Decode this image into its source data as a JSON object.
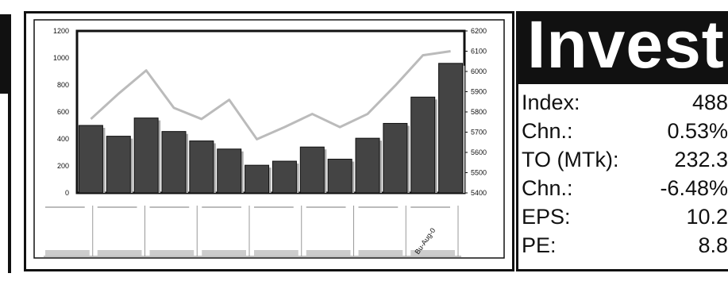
{
  "header": {
    "title": "Invest"
  },
  "stats": [
    {
      "label": "Index:",
      "value": "488"
    },
    {
      "label": "Chn.:",
      "value": "0.53%"
    },
    {
      "label": "TO (MTk):",
      "value": "232.3"
    },
    {
      "label": "Chn.:",
      "value": "-6.48%"
    },
    {
      "label": "EPS:",
      "value": "10.2"
    },
    {
      "label": "PE:",
      "value": "8.8"
    }
  ],
  "chart_data": {
    "type": "bar",
    "title": "",
    "left_axis": {
      "ylim": [
        0,
        1200
      ],
      "ticks": [
        "1200",
        "1000",
        "800",
        "600",
        "400",
        "200",
        "0"
      ]
    },
    "right_axis": {
      "ylim": [
        5400,
        6200
      ],
      "ticks": [
        "6200",
        "6100",
        "6000",
        "5900",
        "5800",
        "5700",
        "5600",
        "5500",
        "5400"
      ]
    },
    "series": [
      {
        "type": "bar",
        "axis": "left",
        "values": [
          500,
          420,
          555,
          455,
          385,
          325,
          205,
          235,
          340,
          250,
          405,
          515,
          710,
          960
        ]
      },
      {
        "type": "line",
        "axis": "right",
        "values": [
          5765,
          5890,
          6005,
          5820,
          5765,
          5860,
          5665,
          5725,
          5790,
          5725,
          5790,
          5930,
          6080,
          6100
        ]
      }
    ],
    "grid": false,
    "legend": "none",
    "mini_chart_label": "Bu-Aug-0"
  },
  "colors": {
    "bar": "#444444",
    "line": "#bbbbbb",
    "dark": "#111111"
  }
}
